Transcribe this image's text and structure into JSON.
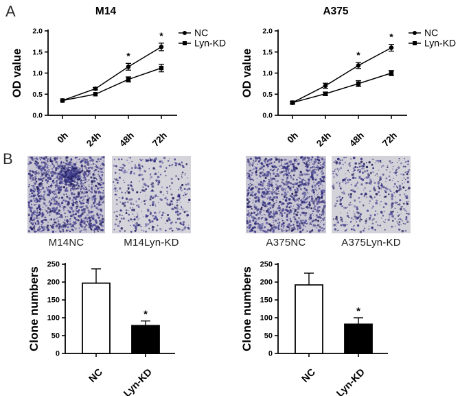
{
  "panels": {
    "a": "A",
    "b": "B"
  },
  "colors": {
    "ink": "#000000",
    "stain_background_dense": "#c9c6d3",
    "stain_background_sparse": "#d6d4db",
    "stain_dot_palette": [
      "#312e7b",
      "#47448d",
      "#23215c",
      "#5a57a1",
      "#3a3784"
    ]
  },
  "colony_images": [
    {
      "label": "M14NC",
      "density": "dense",
      "dot_count": 1250,
      "bg": "#c9c6d3",
      "seed": 11,
      "cluster": true
    },
    {
      "label": "M14Lyn-KD",
      "density": "sparse",
      "dot_count": 430,
      "bg": "#d6d4db",
      "seed": 22,
      "cluster": false
    },
    {
      "label": "A375NC",
      "density": "dense",
      "dot_count": 1180,
      "bg": "#cac7d4",
      "seed": 33,
      "cluster": false
    },
    {
      "label": "A375Lyn-KD",
      "density": "sparse",
      "dot_count": 480,
      "bg": "#d4d2d9",
      "seed": 44,
      "cluster": false
    }
  ],
  "chart_data": [
    {
      "id": "m14-growth",
      "type": "line",
      "title": "M14",
      "xlabel": "",
      "ylabel": "OD value",
      "ylim": [
        0,
        2.0
      ],
      "yticks": [
        0.0,
        0.5,
        1.0,
        1.5,
        2.0
      ],
      "categories": [
        "0h",
        "24h",
        "48h",
        "72h"
      ],
      "legend_position": "right",
      "series": [
        {
          "name": "NC",
          "marker": "circle",
          "values": [
            0.35,
            0.63,
            1.15,
            1.62
          ],
          "errors": [
            0.02,
            0.03,
            0.08,
            0.09
          ]
        },
        {
          "name": "Lyn-KD",
          "marker": "square",
          "values": [
            0.35,
            0.5,
            0.85,
            1.12
          ],
          "errors": [
            0.02,
            0.02,
            0.06,
            0.09
          ]
        }
      ],
      "sig_marks": [
        {
          "series": "NC",
          "category": "48h",
          "symbol": "*"
        },
        {
          "series": "NC",
          "category": "72h",
          "symbol": "*"
        }
      ]
    },
    {
      "id": "a375-growth",
      "type": "line",
      "title": "A375",
      "xlabel": "",
      "ylabel": "OD value",
      "ylim": [
        0,
        2.0
      ],
      "yticks": [
        0.0,
        0.5,
        1.0,
        1.5,
        2.0
      ],
      "categories": [
        "0h",
        "24h",
        "48h",
        "72h"
      ],
      "legend_position": "right",
      "series": [
        {
          "name": "NC",
          "marker": "circle",
          "values": [
            0.3,
            0.7,
            1.18,
            1.6
          ],
          "errors": [
            0.03,
            0.06,
            0.07,
            0.08
          ]
        },
        {
          "name": "Lyn-KD",
          "marker": "square",
          "values": [
            0.3,
            0.51,
            0.75,
            1.0
          ],
          "errors": [
            0.03,
            0.04,
            0.07,
            0.06
          ]
        }
      ],
      "sig_marks": [
        {
          "series": "NC",
          "category": "48h",
          "symbol": "*"
        },
        {
          "series": "NC",
          "category": "72h",
          "symbol": "*"
        }
      ]
    },
    {
      "id": "m14-clones",
      "type": "bar",
      "title": "",
      "xlabel": "",
      "ylabel": "Clone numbers",
      "ylim": [
        0,
        250
      ],
      "yticks": [
        0,
        50,
        100,
        150,
        200,
        250
      ],
      "categories": [
        "NC",
        "Lyn-KD"
      ],
      "values": [
        197,
        78
      ],
      "errors": [
        40,
        13
      ],
      "bar_fills": [
        "#ffffff",
        "#000000"
      ],
      "sig_marks": [
        {
          "category": "Lyn-KD",
          "symbol": "*"
        }
      ]
    },
    {
      "id": "a375-clones",
      "type": "bar",
      "title": "",
      "xlabel": "",
      "ylabel": "Clone numbers",
      "ylim": [
        0,
        250
      ],
      "yticks": [
        0,
        50,
        100,
        150,
        200,
        250
      ],
      "categories": [
        "NC",
        "Lyn-KD"
      ],
      "values": [
        192,
        82
      ],
      "errors": [
        33,
        18
      ],
      "bar_fills": [
        "#ffffff",
        "#000000"
      ],
      "sig_marks": [
        {
          "category": "Lyn-KD",
          "symbol": "*"
        }
      ]
    }
  ]
}
